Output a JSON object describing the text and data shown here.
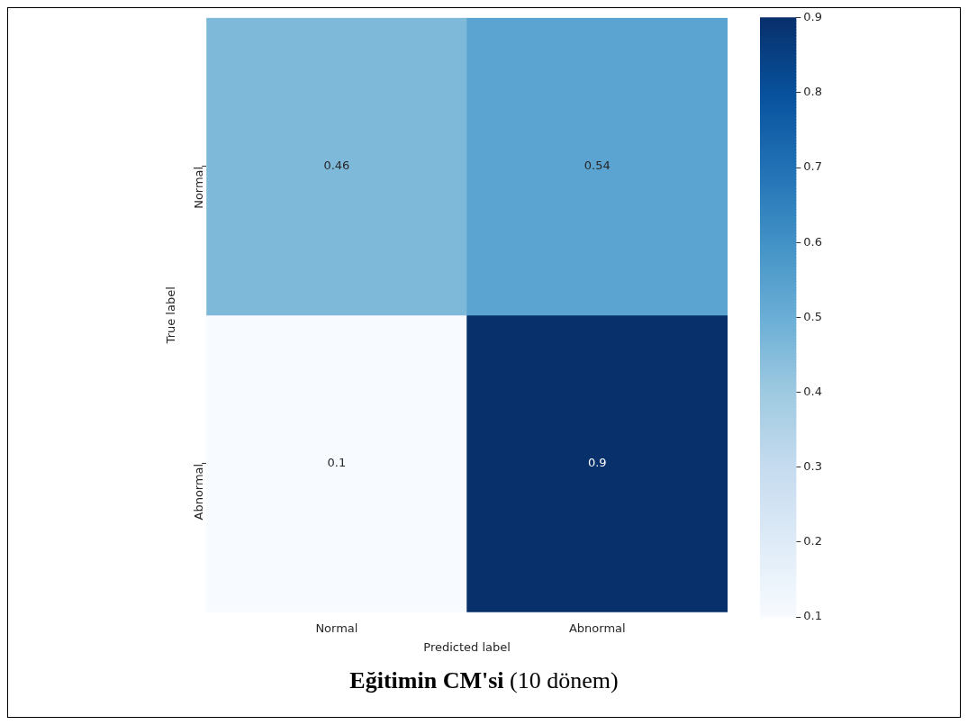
{
  "chart_data": {
    "type": "heatmap",
    "title": "Eğitimin CM'si",
    "subtitle": "(10 dönem)",
    "xlabel": "Predicted label",
    "ylabel": "True label",
    "categories": [
      "Normal",
      "Abnormal"
    ],
    "y_categories": [
      "Normal",
      "Abnormal"
    ],
    "cells": [
      [
        0.46,
        0.54
      ],
      [
        0.1,
        0.9
      ]
    ],
    "clim": [
      0.1,
      0.9
    ],
    "cticks": [
      0.1,
      0.2,
      0.3,
      0.4,
      0.5,
      0.6,
      0.7,
      0.8,
      0.9
    ],
    "data_labels": true
  }
}
